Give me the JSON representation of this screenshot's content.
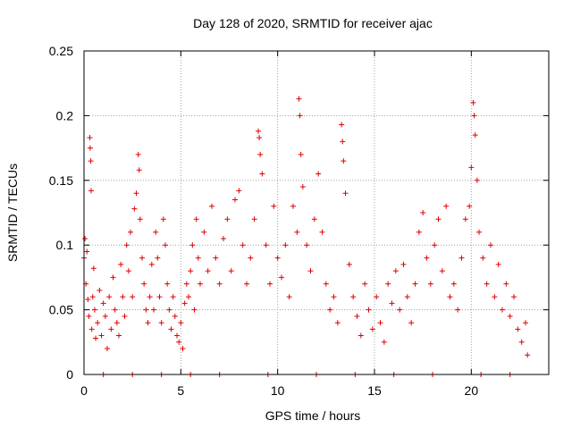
{
  "chart_data": {
    "type": "scatter",
    "title": "Day 128 of 2020, SRMTID for receiver ajac",
    "xlabel": "GPS time / hours",
    "ylabel": "SRMTID / TECUs",
    "xlim": [
      0,
      24
    ],
    "ylim": [
      0,
      0.25
    ],
    "x_ticks": [
      {
        "value": 0,
        "label": "0"
      },
      {
        "value": 5,
        "label": "5"
      },
      {
        "value": 10,
        "label": "10"
      },
      {
        "value": 15,
        "label": "15"
      },
      {
        "value": 20,
        "label": "20"
      }
    ],
    "y_ticks": [
      {
        "value": 0,
        "label": "0"
      },
      {
        "value": 0.05,
        "label": "0.05"
      },
      {
        "value": 0.1,
        "label": "0.1"
      },
      {
        "value": 0.15,
        "label": "0.15"
      },
      {
        "value": 0.2,
        "label": "0.2"
      },
      {
        "value": 0.25,
        "label": "0.25"
      }
    ],
    "grid": true,
    "marker": "+",
    "color": "#e00000",
    "series": [
      {
        "name": "SRMTID",
        "points": [
          [
            0.0,
            0.09
          ],
          [
            0.05,
            0.105
          ],
          [
            0.1,
            0.07
          ],
          [
            0.15,
            0.095
          ],
          [
            0.2,
            0.058
          ],
          [
            0.25,
            0.045
          ],
          [
            0.3,
            0.183
          ],
          [
            0.32,
            0.175
          ],
          [
            0.35,
            0.165
          ],
          [
            0.37,
            0.142
          ],
          [
            0.4,
            0.035
          ],
          [
            0.45,
            0.06
          ],
          [
            0.5,
            0.082
          ],
          [
            0.55,
            0.05
          ],
          [
            0.6,
            0.028
          ],
          [
            0.7,
            0.04
          ],
          [
            0.8,
            0.065
          ],
          [
            0.9,
            0.03
          ],
          [
            1.0,
            0.055
          ],
          [
            1.1,
            0.045
          ],
          [
            1.2,
            0.02
          ],
          [
            1.3,
            0.06
          ],
          [
            1.4,
            0.035
          ],
          [
            1.5,
            0.075
          ],
          [
            1.6,
            0.05
          ],
          [
            1.7,
            0.04
          ],
          [
            1.8,
            0.03
          ],
          [
            1.9,
            0.085
          ],
          [
            2.0,
            0.06
          ],
          [
            2.1,
            0.045
          ],
          [
            2.2,
            0.1
          ],
          [
            2.3,
            0.08
          ],
          [
            2.4,
            0.11
          ],
          [
            2.5,
            0.06
          ],
          [
            2.6,
            0.128
          ],
          [
            2.7,
            0.14
          ],
          [
            2.8,
            0.17
          ],
          [
            2.85,
            0.158
          ],
          [
            2.9,
            0.12
          ],
          [
            3.0,
            0.09
          ],
          [
            3.1,
            0.07
          ],
          [
            3.2,
            0.05
          ],
          [
            3.3,
            0.04
          ],
          [
            3.4,
            0.06
          ],
          [
            3.5,
            0.085
          ],
          [
            3.6,
            0.05
          ],
          [
            3.7,
            0.11
          ],
          [
            3.8,
            0.09
          ],
          [
            3.9,
            0.06
          ],
          [
            4.0,
            0.04
          ],
          [
            4.1,
            0.12
          ],
          [
            4.2,
            0.1
          ],
          [
            4.3,
            0.07
          ],
          [
            4.4,
            0.05
          ],
          [
            4.5,
            0.035
          ],
          [
            4.6,
            0.06
          ],
          [
            4.7,
            0.045
          ],
          [
            4.8,
            0.03
          ],
          [
            4.9,
            0.025
          ],
          [
            5.0,
            0.04
          ],
          [
            5.1,
            0.02
          ],
          [
            5.2,
            0.055
          ],
          [
            5.3,
            0.07
          ],
          [
            5.4,
            0.06
          ],
          [
            5.5,
            0.08
          ],
          [
            5.6,
            0.1
          ],
          [
            5.7,
            0.05
          ],
          [
            5.8,
            0.12
          ],
          [
            5.9,
            0.09
          ],
          [
            6.0,
            0.07
          ],
          [
            6.2,
            0.11
          ],
          [
            6.4,
            0.08
          ],
          [
            6.6,
            0.13
          ],
          [
            6.8,
            0.09
          ],
          [
            7.0,
            0.07
          ],
          [
            7.2,
            0.105
          ],
          [
            7.4,
            0.12
          ],
          [
            7.6,
            0.08
          ],
          [
            7.8,
            0.135
          ],
          [
            8.0,
            0.142
          ],
          [
            8.2,
            0.1
          ],
          [
            8.4,
            0.07
          ],
          [
            8.6,
            0.09
          ],
          [
            8.8,
            0.12
          ],
          [
            9.0,
            0.188
          ],
          [
            9.05,
            0.183
          ],
          [
            9.1,
            0.17
          ],
          [
            9.2,
            0.155
          ],
          [
            9.4,
            0.1
          ],
          [
            9.6,
            0.07
          ],
          [
            9.8,
            0.13
          ],
          [
            10.0,
            0.09
          ],
          [
            10.2,
            0.075
          ],
          [
            10.4,
            0.1
          ],
          [
            10.6,
            0.06
          ],
          [
            10.8,
            0.13
          ],
          [
            11.0,
            0.11
          ],
          [
            11.1,
            0.213
          ],
          [
            11.15,
            0.2
          ],
          [
            11.2,
            0.17
          ],
          [
            11.3,
            0.145
          ],
          [
            11.5,
            0.1
          ],
          [
            11.7,
            0.08
          ],
          [
            11.9,
            0.12
          ],
          [
            12.1,
            0.155
          ],
          [
            12.3,
            0.11
          ],
          [
            12.5,
            0.07
          ],
          [
            12.7,
            0.05
          ],
          [
            12.9,
            0.06
          ],
          [
            13.1,
            0.04
          ],
          [
            13.3,
            0.193
          ],
          [
            13.35,
            0.18
          ],
          [
            13.4,
            0.165
          ],
          [
            13.5,
            0.14
          ],
          [
            13.7,
            0.085
          ],
          [
            13.9,
            0.06
          ],
          [
            14.1,
            0.045
          ],
          [
            14.3,
            0.03
          ],
          [
            14.5,
            0.07
          ],
          [
            14.7,
            0.05
          ],
          [
            14.9,
            0.035
          ],
          [
            15.1,
            0.06
          ],
          [
            15.3,
            0.04
          ],
          [
            15.5,
            0.025
          ],
          [
            15.7,
            0.07
          ],
          [
            15.9,
            0.055
          ],
          [
            16.1,
            0.08
          ],
          [
            16.3,
            0.05
          ],
          [
            16.5,
            0.085
          ],
          [
            16.7,
            0.06
          ],
          [
            16.9,
            0.04
          ],
          [
            17.1,
            0.07
          ],
          [
            17.3,
            0.11
          ],
          [
            17.5,
            0.125
          ],
          [
            17.7,
            0.09
          ],
          [
            17.9,
            0.07
          ],
          [
            18.1,
            0.1
          ],
          [
            18.3,
            0.12
          ],
          [
            18.5,
            0.08
          ],
          [
            18.7,
            0.13
          ],
          [
            18.9,
            0.06
          ],
          [
            19.1,
            0.07
          ],
          [
            19.3,
            0.05
          ],
          [
            19.5,
            0.09
          ],
          [
            19.7,
            0.12
          ],
          [
            19.9,
            0.13
          ],
          [
            20.0,
            0.16
          ],
          [
            20.1,
            0.21
          ],
          [
            20.15,
            0.2
          ],
          [
            20.2,
            0.185
          ],
          [
            20.3,
            0.15
          ],
          [
            20.4,
            0.11
          ],
          [
            20.6,
            0.09
          ],
          [
            20.8,
            0.07
          ],
          [
            21.0,
            0.1
          ],
          [
            21.2,
            0.06
          ],
          [
            21.4,
            0.085
          ],
          [
            21.6,
            0.05
          ],
          [
            21.8,
            0.07
          ],
          [
            22.0,
            0.045
          ],
          [
            22.2,
            0.06
          ],
          [
            22.4,
            0.035
          ],
          [
            22.6,
            0.025
          ],
          [
            22.8,
            0.04
          ],
          [
            22.9,
            0.015
          ],
          [
            1.0,
            0.0
          ],
          [
            2.5,
            0.0
          ],
          [
            4.0,
            0.0
          ],
          [
            5.5,
            0.0
          ],
          [
            7.0,
            0.0
          ],
          [
            9.5,
            0.0
          ],
          [
            12.0,
            0.0
          ],
          [
            14.0,
            0.0
          ],
          [
            16.0,
            0.0
          ],
          [
            18.0,
            0.0
          ],
          [
            20.5,
            0.0
          ],
          [
            22.0,
            0.0
          ]
        ]
      }
    ]
  }
}
